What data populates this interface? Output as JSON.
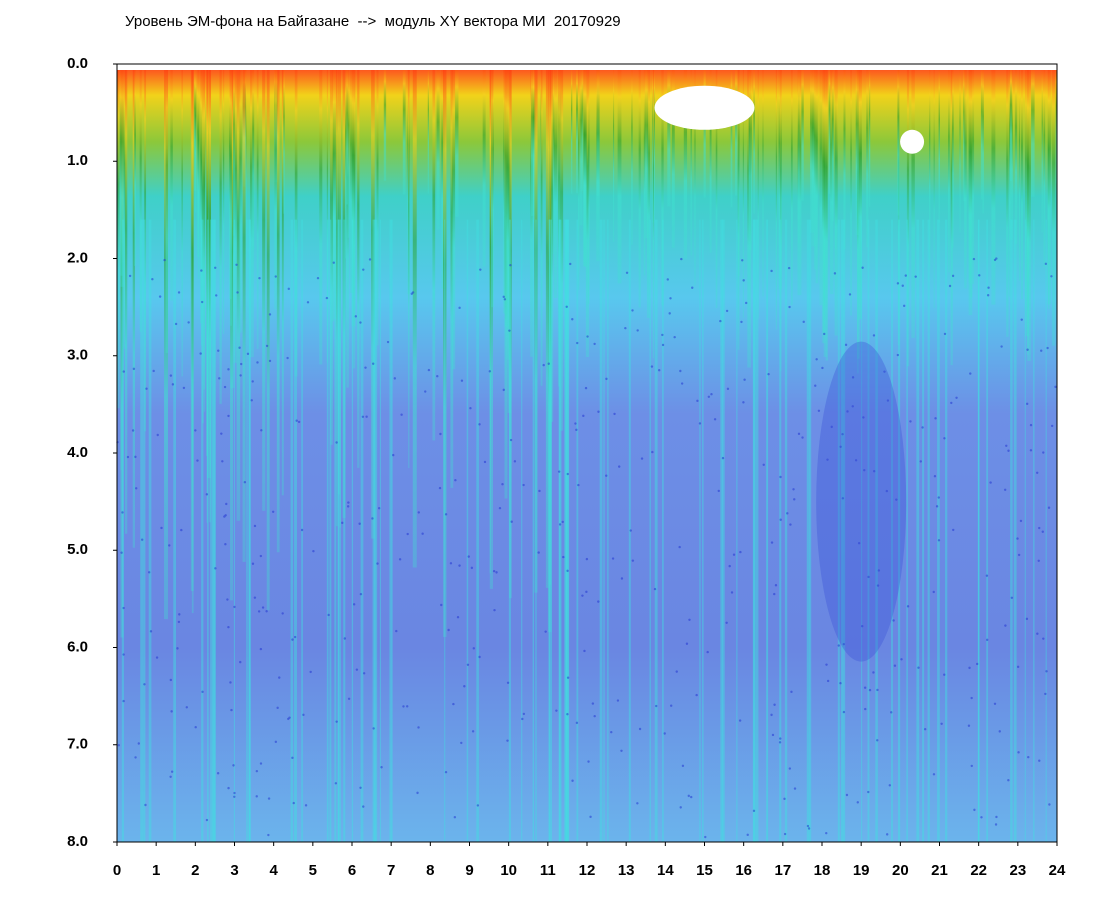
{
  "chart_data": {
    "type": "heatmap",
    "title": "Уровень ЭМ-фона на Байгазане  -->  модуль XY вектора МИ  20170929",
    "xlim": [
      0,
      24
    ],
    "xticks": [
      0,
      1,
      2,
      3,
      4,
      5,
      6,
      7,
      8,
      9,
      10,
      11,
      12,
      13,
      14,
      15,
      16,
      17,
      18,
      19,
      20,
      21,
      22,
      23,
      24
    ],
    "ylim": [
      0,
      8
    ],
    "yticks": [
      {
        "value": 0,
        "label": "0.0"
      },
      {
        "value": 1,
        "label": "1.0"
      },
      {
        "value": 2,
        "label": "2.0"
      },
      {
        "value": 3,
        "label": "3.0"
      },
      {
        "value": 4,
        "label": "4.0"
      },
      {
        "value": 5,
        "label": "5.0"
      },
      {
        "value": 6,
        "label": "6.0"
      },
      {
        "value": 7,
        "label": "7.0"
      },
      {
        "value": 8,
        "label": "8.0"
      }
    ],
    "y_inverted": true
  }
}
